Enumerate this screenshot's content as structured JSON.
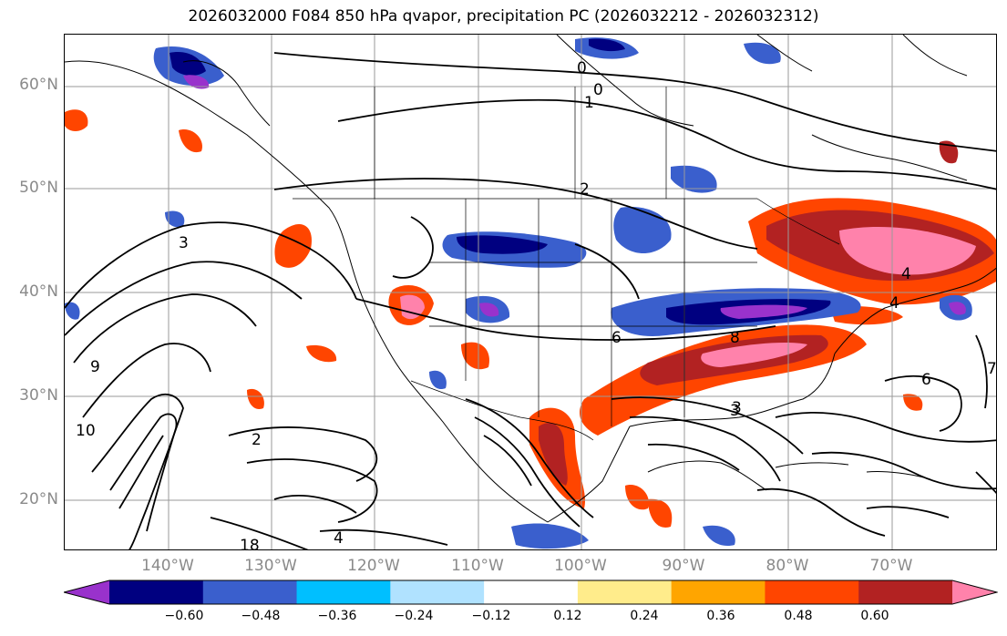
{
  "title": "2026032000 F084 850 hPa qvapor, precipitation PC (2026032212 - 2026032312)",
  "lat_labels": [
    "60°N",
    "50°N",
    "40°N",
    "30°N",
    "20°N"
  ],
  "lon_labels": [
    "140°W",
    "130°W",
    "120°W",
    "110°W",
    "100°W",
    "90°W",
    "80°W",
    "70°W"
  ],
  "contour_labels": [
    "0",
    "0",
    "1",
    "2",
    "3",
    "3",
    "4",
    "4",
    "6",
    "6",
    "8",
    "9",
    "10",
    "2",
    "4",
    "18",
    "3",
    "7"
  ],
  "colorbar": {
    "colors": [
      "#9932cc",
      "#000080",
      "#3a5fcd",
      "#00bfff",
      "#b0e2ff",
      "#ffffff",
      "#ffec8b",
      "#ffa500",
      "#ff4500",
      "#b22222",
      "#ff82ab"
    ],
    "tick_labels": [
      "−0.60",
      "−0.48",
      "−0.36",
      "−0.24",
      "−0.12",
      "0.12",
      "0.24",
      "0.36",
      "0.48",
      "0.60"
    ]
  }
}
